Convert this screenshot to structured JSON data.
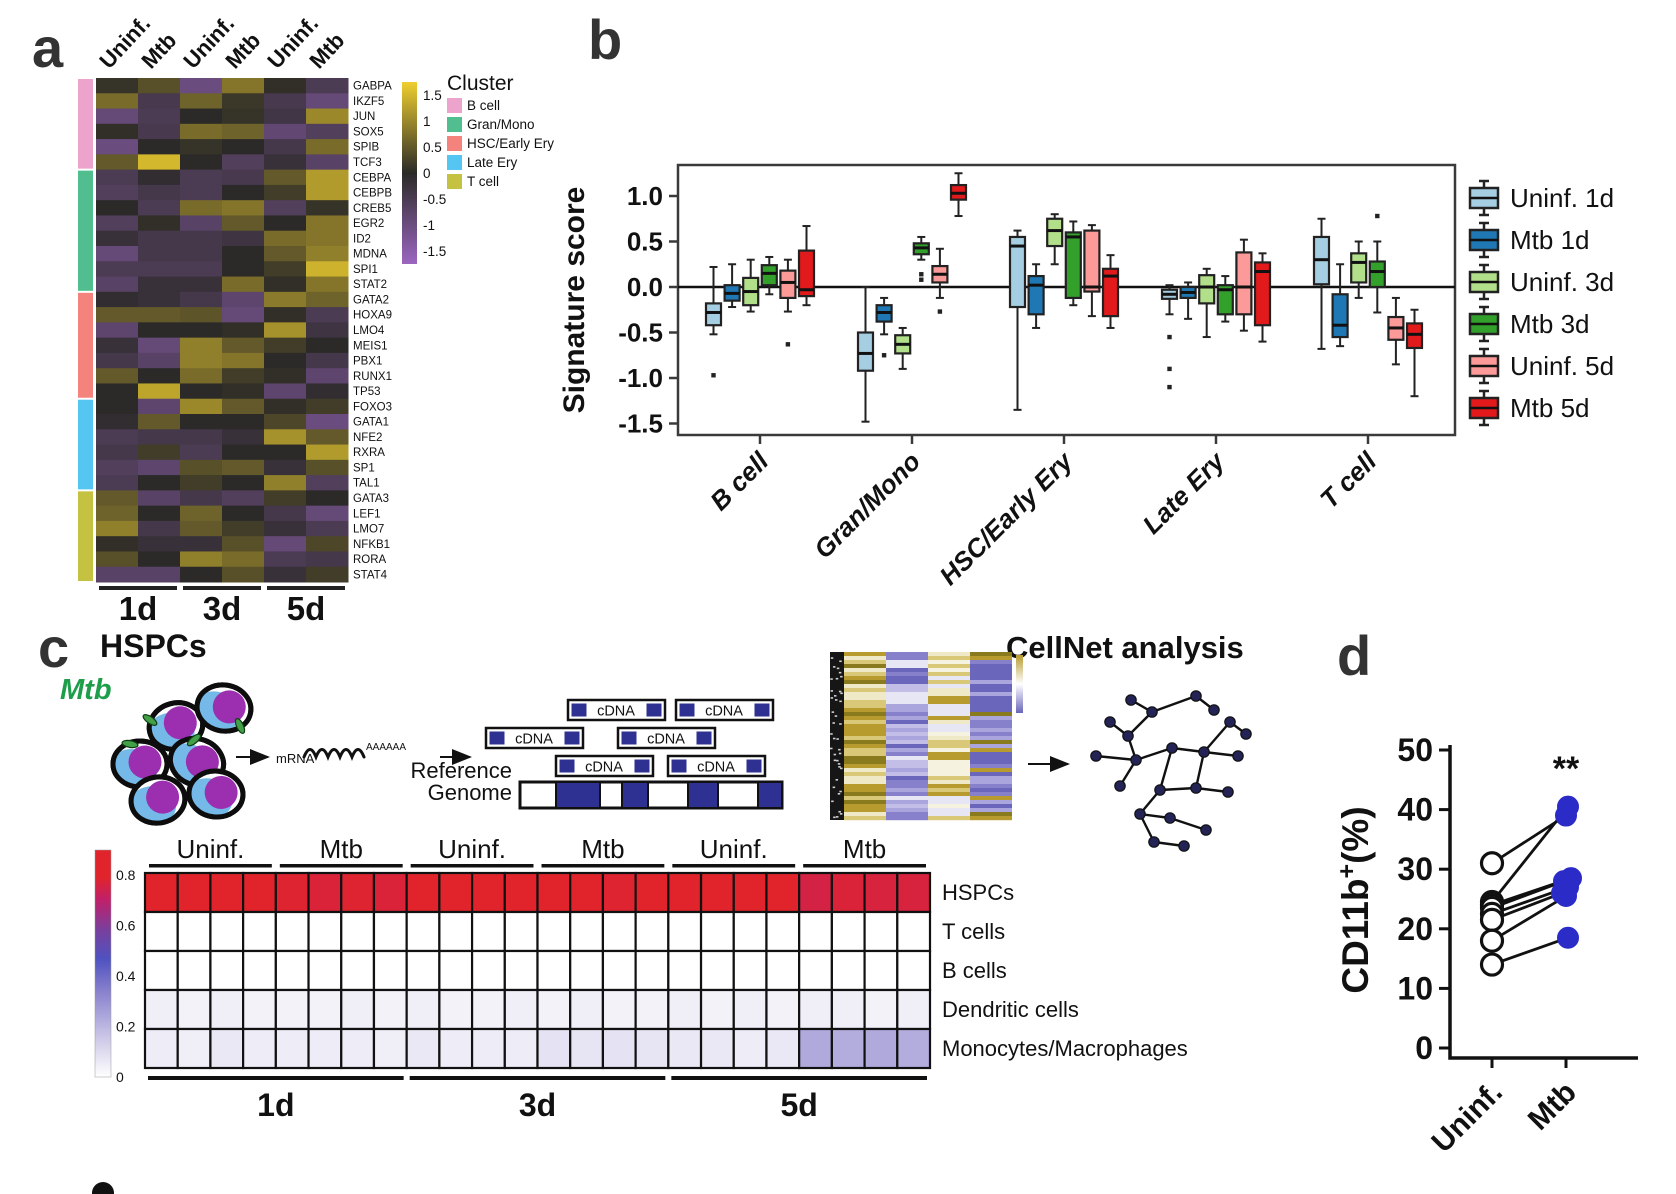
{
  "figure": {
    "panel_labels": {
      "a": "a",
      "b": "b",
      "c": "c",
      "d": "d"
    },
    "workflow": {
      "hspcs_title": "HSPCs",
      "mtb_label": "Mtb",
      "mtb_color": "#1E9E4A",
      "mrna_label": "mRNA",
      "polya_label": "AAAAAA",
      "cdna_label": "cDNA",
      "reference_line1": "Reference",
      "reference_line2": "Genome",
      "cellnet_title": "CellNet analysis"
    }
  },
  "chart_data": [
    {
      "panel": "a",
      "type": "heatmap",
      "col_labels": [
        "Uninf.",
        "Mtb",
        "Uninf.",
        "Mtb",
        "Uninf.",
        "Mtb"
      ],
      "day_labels": [
        "1d",
        "3d",
        "5d"
      ],
      "legend_title": "Cluster",
      "clusters": [
        {
          "name": "B cell",
          "color": "#ECA3CC",
          "count": 6
        },
        {
          "name": "Gran/Mono",
          "color": "#50BE8E",
          "count": 8
        },
        {
          "name": "HSC/Early Ery",
          "color": "#F4837D",
          "count": 7
        },
        {
          "name": "Late Ery",
          "color": "#55C5F2",
          "count": 6
        },
        {
          "name": "T cell",
          "color": "#C5C242",
          "count": 6
        }
      ],
      "rows": [
        "GABPA",
        "IKZF5",
        "JUN",
        "SOX5",
        "SPIB",
        "TCF3",
        "CEBPA",
        "CEBPB",
        "CREB5",
        "EGR2",
        "ID2",
        "MDNA",
        "SPI1",
        "STAT2",
        "GATA2",
        "HOXA9",
        "LMO4",
        "MEIS1",
        "PBX1",
        "RUNX1",
        "TP53",
        "FOXO3",
        "GATA1",
        "NFE2",
        "RXRA",
        "SP1",
        "TAL1",
        "GATA3",
        "LEF1",
        "LMO7",
        "NFKB1",
        "RORA",
        "STAT4"
      ],
      "colorbar_ticks": [
        "1.5",
        "1",
        "0.5",
        "0",
        "-0.5",
        "-1",
        "-1.5"
      ],
      "value_range": [
        -1.75,
        1.75
      ],
      "colormap": {
        "low": "#9B66C0",
        "mid": "#2B2A28",
        "high": "#EFCF2E"
      },
      "values": [
        [
          0.1,
          0.4,
          -1.0,
          0.8,
          0.05,
          -0.5
        ],
        [
          0.7,
          -0.45,
          0.6,
          0.15,
          -0.45,
          -0.9
        ],
        [
          -0.9,
          -0.5,
          0.0,
          0.1,
          -0.35,
          1.0
        ],
        [
          0.05,
          -0.45,
          0.7,
          0.6,
          -0.85,
          -0.6
        ],
        [
          -1.0,
          0.0,
          0.1,
          0.0,
          -0.4,
          0.7
        ],
        [
          0.5,
          1.5,
          0.0,
          -0.6,
          -0.2,
          -0.7
        ],
        [
          -0.5,
          -0.1,
          -0.5,
          -0.45,
          0.5,
          1.2
        ],
        [
          -0.6,
          -0.4,
          -0.5,
          0.0,
          0.2,
          1.2
        ],
        [
          0.0,
          -0.5,
          0.7,
          0.8,
          -0.6,
          0.1
        ],
        [
          -0.6,
          0.05,
          -0.7,
          0.5,
          0.0,
          0.8
        ],
        [
          -0.2,
          -0.4,
          -0.4,
          -0.3,
          0.7,
          0.8
        ],
        [
          -0.9,
          -0.4,
          -0.4,
          0.0,
          0.5,
          0.9
        ],
        [
          -0.5,
          -0.5,
          -0.5,
          0.0,
          0.2,
          1.45
        ],
        [
          -0.7,
          -0.2,
          -0.2,
          0.7,
          0.05,
          0.8
        ],
        [
          -0.1,
          -0.2,
          -0.4,
          -0.8,
          0.85,
          0.6
        ],
        [
          0.5,
          0.5,
          0.45,
          -0.9,
          0.05,
          -0.5
        ],
        [
          -0.8,
          0.0,
          0.0,
          0.05,
          1.1,
          -0.3
        ],
        [
          -0.2,
          -0.9,
          0.9,
          0.5,
          0.2,
          0.0
        ],
        [
          -0.4,
          -0.7,
          0.9,
          0.8,
          0.0,
          -0.4
        ],
        [
          0.5,
          0.0,
          0.7,
          0.2,
          0.05,
          -0.8
        ],
        [
          0.0,
          1.3,
          0.0,
          0.05,
          -0.8,
          -0.1
        ],
        [
          0.0,
          -0.8,
          1.0,
          0.5,
          0.05,
          0.2
        ],
        [
          -0.1,
          0.5,
          0.0,
          0.0,
          0.3,
          -1.0
        ],
        [
          -0.5,
          -0.4,
          -0.4,
          -0.2,
          1.1,
          0.5
        ],
        [
          -0.4,
          0.2,
          -0.5,
          0.0,
          0.0,
          1.2
        ],
        [
          -0.6,
          -0.8,
          0.4,
          0.5,
          -0.2,
          0.4
        ],
        [
          -0.5,
          0.0,
          0.2,
          0.0,
          0.9,
          -0.6
        ],
        [
          0.5,
          -0.7,
          -0.4,
          -0.6,
          0.2,
          0.0
        ],
        [
          0.6,
          0.0,
          0.6,
          0.0,
          -0.4,
          -0.9
        ],
        [
          0.9,
          -0.4,
          0.5,
          0.2,
          -0.2,
          -0.5
        ],
        [
          0.05,
          -0.2,
          -0.2,
          0.4,
          -0.9,
          0.3
        ],
        [
          0.4,
          0.0,
          0.9,
          0.7,
          -0.5,
          -0.4
        ],
        [
          -0.7,
          -0.7,
          0.0,
          0.4,
          -0.2,
          0.2
        ]
      ]
    },
    {
      "panel": "b",
      "type": "box",
      "ylabel": "Signature score",
      "yticks": [
        "1.0",
        "0.5",
        "0.0",
        "-0.5",
        "-1.0",
        "-1.5"
      ],
      "ytick_values": [
        1.0,
        0.5,
        0.0,
        -0.5,
        -1.0,
        -1.5
      ],
      "ylim": [
        -1.62,
        1.34
      ],
      "categories": [
        "B cell",
        "Gran/Mono",
        "HSC/Early Ery",
        "Late Ery",
        "T cell"
      ],
      "series": [
        {
          "name": "Uninf. 1d",
          "color": "#A6CEE3",
          "boxes": [
            [
              -0.52,
              -0.42,
              -0.28,
              -0.18,
              0.22,
              [
                -0.97
              ]
            ],
            [
              -1.48,
              -0.92,
              -0.73,
              -0.5,
              0.0,
              []
            ],
            [
              -1.35,
              -0.22,
              0.45,
              0.55,
              0.62,
              []
            ],
            [
              -0.3,
              -0.13,
              -0.08,
              -0.03,
              0.02,
              [
                -0.55,
                -0.9,
                -1.1
              ]
            ],
            [
              -0.68,
              0.03,
              0.3,
              0.55,
              0.75,
              []
            ]
          ]
        },
        {
          "name": "Mtb 1d",
          "color": "#1F78B4",
          "boxes": [
            [
              -0.22,
              -0.15,
              -0.07,
              0.02,
              0.25,
              []
            ],
            [
              -0.52,
              -0.38,
              -0.28,
              -0.2,
              -0.12,
              [
                -0.75
              ]
            ],
            [
              -0.45,
              -0.3,
              0.02,
              0.12,
              0.25,
              []
            ],
            [
              -0.35,
              -0.12,
              -0.06,
              0.0,
              0.05,
              []
            ],
            [
              -0.65,
              -0.55,
              -0.42,
              -0.08,
              0.25,
              []
            ]
          ]
        },
        {
          "name": "Uninf. 3d",
          "color": "#B2DF8A",
          "boxes": [
            [
              -0.27,
              -0.2,
              -0.05,
              0.1,
              0.3,
              []
            ],
            [
              -0.9,
              -0.73,
              -0.63,
              -0.53,
              -0.45,
              []
            ],
            [
              0.25,
              0.45,
              0.62,
              0.75,
              0.8,
              []
            ],
            [
              -0.55,
              -0.18,
              0.0,
              0.13,
              0.2,
              []
            ],
            [
              -0.12,
              0.05,
              0.27,
              0.37,
              0.5,
              []
            ]
          ]
        },
        {
          "name": "Mtb 3d",
          "color": "#33A02C",
          "boxes": [
            [
              -0.08,
              0.02,
              0.15,
              0.24,
              0.33,
              []
            ],
            [
              0.3,
              0.36,
              0.43,
              0.48,
              0.55,
              [
                0.08,
                0.14
              ]
            ],
            [
              -0.2,
              -0.12,
              0.55,
              0.6,
              0.72,
              []
            ],
            [
              -0.38,
              -0.3,
              -0.03,
              0.02,
              0.12,
              []
            ],
            [
              -0.28,
              0.0,
              0.17,
              0.28,
              0.5,
              [
                0.78
              ]
            ]
          ]
        },
        {
          "name": "Uninf. 5d",
          "color": "#FB9A99",
          "boxes": [
            [
              -0.27,
              -0.12,
              0.05,
              0.18,
              0.3,
              [
                -0.63
              ]
            ],
            [
              -0.12,
              0.05,
              0.14,
              0.23,
              0.42,
              [
                -0.27
              ]
            ],
            [
              -0.32,
              -0.05,
              0.0,
              0.62,
              0.68,
              []
            ],
            [
              -0.48,
              -0.3,
              0.0,
              0.38,
              0.52,
              []
            ],
            [
              -0.85,
              -0.58,
              -0.45,
              -0.33,
              -0.12,
              []
            ]
          ]
        },
        {
          "name": "Mtb 5d",
          "color": "#E31A1C",
          "boxes": [
            [
              -0.2,
              -0.1,
              -0.03,
              0.4,
              0.67,
              []
            ],
            [
              0.78,
              0.96,
              1.03,
              1.12,
              1.25,
              []
            ],
            [
              -0.45,
              -0.32,
              0.12,
              0.2,
              0.35,
              []
            ],
            [
              -0.6,
              -0.42,
              0.17,
              0.27,
              0.37,
              []
            ],
            [
              -1.2,
              -0.67,
              -0.52,
              -0.4,
              -0.25,
              []
            ]
          ]
        }
      ]
    },
    {
      "panel": "c",
      "type": "heatmap",
      "col_group_labels": [
        "Uninf.",
        "Mtb",
        "Uninf.",
        "Mtb",
        "Uninf.",
        "Mtb"
      ],
      "cols_per_group": 4,
      "day_labels": [
        "1d",
        "3d",
        "5d"
      ],
      "rows": [
        "HSPCs",
        "T cells",
        "B cells",
        "Dendritic cells",
        "Monocytes/Macrophages"
      ],
      "colorbar_ticks": [
        "0.8",
        "0.6",
        "0.4",
        "0.2",
        "0"
      ],
      "value_range": [
        0,
        0.9
      ],
      "values": [
        [
          0.95,
          0.95,
          0.94,
          0.95,
          0.87,
          0.86,
          0.87,
          0.86,
          0.95,
          0.94,
          0.95,
          0.95,
          0.88,
          0.88,
          0.87,
          0.88,
          0.95,
          0.94,
          0.95,
          0.93,
          0.84,
          0.86,
          0.85,
          0.85
        ],
        [
          0,
          0,
          0,
          0,
          0,
          0,
          0,
          0,
          0,
          0,
          0,
          0,
          0,
          0,
          0,
          0,
          0,
          0,
          0,
          0,
          0,
          0,
          0,
          0
        ],
        [
          0,
          0,
          0,
          0,
          0,
          0,
          0,
          0,
          0,
          0,
          0,
          0,
          0,
          0,
          0,
          0,
          0,
          0,
          0,
          0,
          0,
          0,
          0,
          0
        ],
        [
          0.05,
          0.04,
          0.05,
          0.04,
          0.04,
          0.04,
          0.05,
          0.04,
          0.05,
          0.04,
          0.04,
          0.05,
          0.04,
          0.05,
          0.04,
          0.04,
          0.05,
          0.04,
          0.05,
          0.04,
          0.05,
          0.05,
          0.04,
          0.05
        ],
        [
          0.06,
          0.05,
          0.07,
          0.06,
          0.06,
          0.06,
          0.06,
          0.05,
          0.07,
          0.06,
          0.06,
          0.06,
          0.09,
          0.08,
          0.09,
          0.08,
          0.07,
          0.07,
          0.06,
          0.07,
          0.26,
          0.25,
          0.26,
          0.25
        ]
      ]
    },
    {
      "panel": "d",
      "type": "scatter",
      "ylabel_base": "CD11b",
      "ylabel_sup": "+",
      "ylabel_unit": "(%)",
      "categories": [
        "Uninf.",
        "Mtb"
      ],
      "yticks": [
        0,
        10,
        20,
        30,
        40,
        50
      ],
      "ylim": [
        0,
        50
      ],
      "significance": "**",
      "series": [
        {
          "name": "Uninf.",
          "fill": "#FFFFFF"
        },
        {
          "name": "Mtb",
          "fill": "#2B2BC8"
        }
      ],
      "pairs": [
        [
          31,
          39
        ],
        [
          24.5,
          40.5
        ],
        [
          24,
          28.5
        ],
        [
          23.5,
          28
        ],
        [
          22.5,
          27
        ],
        [
          21.5,
          26
        ],
        [
          18,
          25.5
        ],
        [
          14,
          18.5
        ]
      ]
    }
  ]
}
